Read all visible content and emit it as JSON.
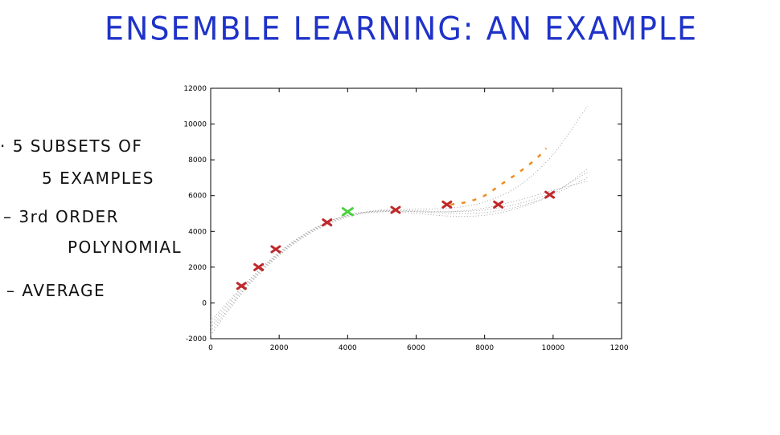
{
  "title": "ENSEMBLE LEARNING: AN EXAMPLE",
  "notes": {
    "line1": "· 5 SUBSETS OF",
    "line2": "5 EXAMPLES",
    "line3": "– 3rd ORDER",
    "line4": "POLYNOMIAL",
    "line5": "– AVERAGE"
  },
  "chart_data": {
    "type": "scatter",
    "xlim": [
      0,
      12000
    ],
    "ylim": [
      -2000,
      12000
    ],
    "x_ticks": [
      "0",
      "2000",
      "4000",
      "6000",
      "8000",
      "10000",
      "12000"
    ],
    "y_ticks": [
      "-2000",
      "0",
      "2000",
      "4000",
      "6000",
      "8000",
      "10000",
      "12000"
    ],
    "grid": false,
    "colors": {
      "points": "#c0282b",
      "highlight": "#4ad13f",
      "fit": "#f08c1e",
      "curves": "#9a9a9a",
      "axis": "#000000"
    },
    "points": [
      {
        "x": 900,
        "y": 950
      },
      {
        "x": 1400,
        "y": 2000
      },
      {
        "x": 1900,
        "y": 3000
      },
      {
        "x": 3400,
        "y": 4500
      },
      {
        "x": 5400,
        "y": 5200
      },
      {
        "x": 6900,
        "y": 5500
      },
      {
        "x": 8400,
        "y": 5500
      },
      {
        "x": 9900,
        "y": 6050
      }
    ],
    "highlight_point": {
      "x": 4000,
      "y": 5100
    },
    "fit_curve": [
      {
        "x": 7000,
        "y": 5500
      },
      {
        "x": 7500,
        "y": 5650
      },
      {
        "x": 8000,
        "y": 6000
      },
      {
        "x": 8500,
        "y": 6650
      },
      {
        "x": 9000,
        "y": 7300
      },
      {
        "x": 9500,
        "y": 8050
      },
      {
        "x": 9800,
        "y": 8650
      }
    ],
    "ensemble_curves": [
      [
        [
          0,
          -1200
        ],
        [
          1000,
          1000
        ],
        [
          2000,
          2800
        ],
        [
          3000,
          4100
        ],
        [
          4000,
          4900
        ],
        [
          5000,
          5150
        ],
        [
          6000,
          5100
        ],
        [
          7000,
          5000
        ],
        [
          8000,
          5050
        ],
        [
          9000,
          5400
        ],
        [
          10000,
          6100
        ],
        [
          11000,
          7500
        ]
      ],
      [
        [
          0,
          -1600
        ],
        [
          1000,
          800
        ],
        [
          2000,
          2700
        ],
        [
          3000,
          4050
        ],
        [
          4000,
          4850
        ],
        [
          5000,
          5200
        ],
        [
          6000,
          5250
        ],
        [
          7000,
          5300
        ],
        [
          8000,
          5650
        ],
        [
          9000,
          6550
        ],
        [
          10000,
          8300
        ],
        [
          11000,
          11000
        ]
      ],
      [
        [
          0,
          -1400
        ],
        [
          1000,
          900
        ],
        [
          2000,
          2750
        ],
        [
          3000,
          4100
        ],
        [
          4000,
          4900
        ],
        [
          5000,
          5150
        ],
        [
          6000,
          5150
        ],
        [
          7000,
          5100
        ],
        [
          8000,
          5200
        ],
        [
          9000,
          5550
        ],
        [
          10000,
          6200
        ],
        [
          11000,
          7300
        ]
      ],
      [
        [
          0,
          -1000
        ],
        [
          1000,
          1050
        ],
        [
          2000,
          2850
        ],
        [
          3000,
          4150
        ],
        [
          4000,
          4900
        ],
        [
          5000,
          5100
        ],
        [
          6000,
          5000
        ],
        [
          7000,
          4850
        ],
        [
          8000,
          4900
        ],
        [
          9000,
          5300
        ],
        [
          10000,
          6050
        ],
        [
          11000,
          7000
        ]
      ],
      [
        [
          0,
          -1800
        ],
        [
          1000,
          750
        ],
        [
          2000,
          2650
        ],
        [
          3000,
          4000
        ],
        [
          4000,
          4800
        ],
        [
          5000,
          5100
        ],
        [
          6000,
          5100
        ],
        [
          7000,
          5100
        ],
        [
          8000,
          5300
        ],
        [
          9000,
          5750
        ],
        [
          10000,
          6300
        ],
        [
          11000,
          6800
        ]
      ]
    ]
  }
}
